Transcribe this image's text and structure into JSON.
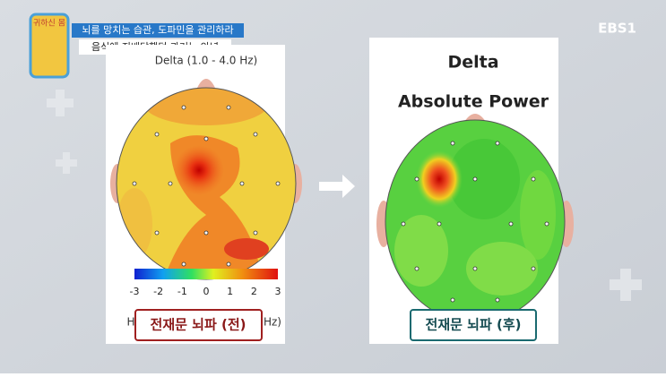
{
  "header": {
    "logo": "귀하신 몸",
    "headline": "뇌를 망치는 습관, 도파민을 관리하라",
    "subheadline": "음식에 지배당했던 과거는 안녕",
    "channel": "EBS1"
  },
  "left_panel": {
    "title": "Delta (1.0 - 4.0 Hz)",
    "colorbar_ticks": [
      "-3",
      "-2",
      "-1",
      "0",
      "1",
      "2",
      "3"
    ],
    "hidden_left": "H",
    "hidden_right": "Hz)",
    "caption": "전재문 뇌파 (전)"
  },
  "right_panel": {
    "title": "Delta",
    "subtitle": "Absolute Power",
    "caption": "전재문 뇌파 (후)"
  }
}
